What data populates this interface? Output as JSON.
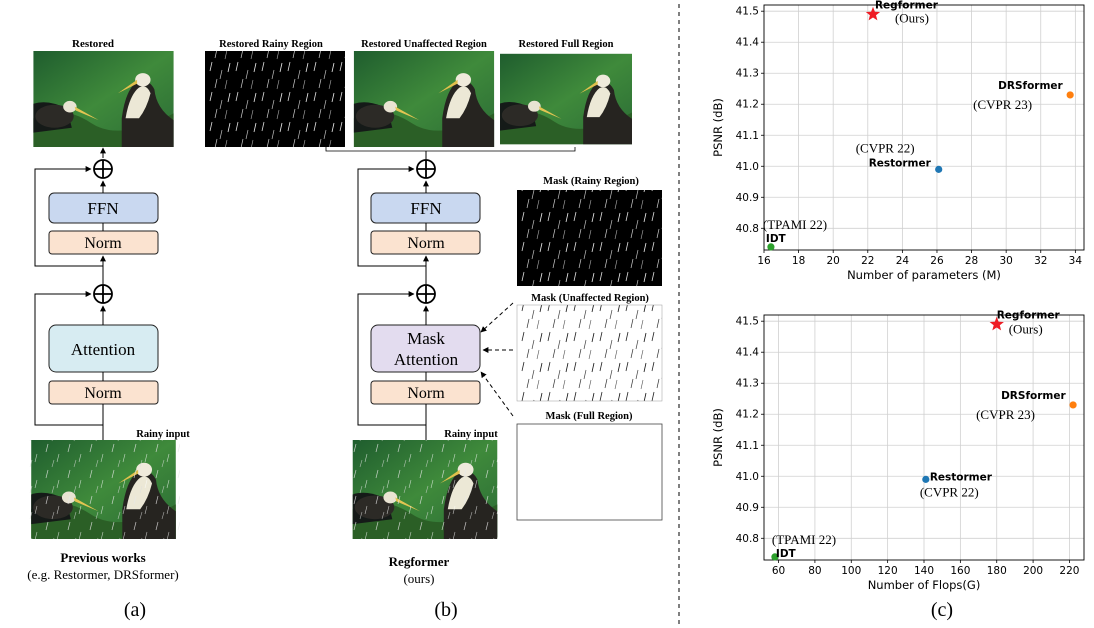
{
  "panel_a": {
    "restored_label": "Restored",
    "ffn_label": "FFN",
    "norm_label": "Norm",
    "attention_label": "Attention",
    "rainy_input_label": "Rainy input",
    "caption_title": "Previous works",
    "caption_sub": "(e.g. Restormer, DRSformer)",
    "panel_letter": "(a)"
  },
  "panel_b": {
    "restored_rainy_label": "Restored Rainy Region",
    "restored_unaffected_label": "Restored Unaffected Region",
    "restored_full_label": "Restored Full Region",
    "ffn_label": "FFN",
    "norm_label": "Norm",
    "mask_attention_line1": "Mask",
    "mask_attention_line2": "Attention",
    "rainy_input_label": "Rainy input",
    "mask_rainy_label": "Mask (Rainy Region)",
    "mask_unaffected_label": "Mask (Unaffected Region)",
    "mask_full_label": "Mask (Full Region)",
    "caption_title": "Regformer",
    "caption_sub": "(ours)",
    "panel_letter": "(b)"
  },
  "panel_c": {
    "panel_letter": "(c)"
  },
  "colors": {
    "ffn_fill": "#c9d8f0",
    "norm_fill": "#fbe3d0",
    "attention_fill": "#d7ecf2",
    "mask_attention_fill": "#e3dcef",
    "regformer": "#ee1c24",
    "drsformer": "#ff7f0e",
    "restormer": "#1f77b4",
    "idt": "#2ca02c"
  },
  "chart_data": [
    {
      "type": "scatter",
      "xlabel": "Number of parameters (M)",
      "ylabel": "PSNR (dB)",
      "xlim": [
        16,
        34.5
      ],
      "ylim": [
        40.73,
        41.52
      ],
      "xticks": [
        16,
        18,
        20,
        22,
        24,
        26,
        28,
        30,
        32,
        34
      ],
      "yticks": [
        40.8,
        40.9,
        41.0,
        41.1,
        41.2,
        41.3,
        41.4,
        41.5
      ],
      "grid": true,
      "points": [
        {
          "name": "Regformer",
          "venue": "(Ours)",
          "x": 22.3,
          "y": 41.49,
          "color": "#ee1c24",
          "marker": "star"
        },
        {
          "name": "DRSformer",
          "venue": "(CVPR 23)",
          "x": 33.7,
          "y": 41.23,
          "color": "#ff7f0e",
          "marker": "circle"
        },
        {
          "name": "Restormer",
          "venue": "(CVPR 22)",
          "x": 26.1,
          "y": 40.99,
          "color": "#1f77b4",
          "marker": "circle"
        },
        {
          "name": "IDT",
          "venue": "(TPAMI 22)",
          "x": 16.4,
          "y": 40.74,
          "color": "#2ca02c",
          "marker": "circle"
        }
      ]
    },
    {
      "type": "scatter",
      "xlabel": "Number of Flops(G)",
      "ylabel": "PSNR (dB)",
      "xlim": [
        52,
        228
      ],
      "ylim": [
        40.73,
        41.52
      ],
      "xticks": [
        60,
        80,
        100,
        120,
        140,
        160,
        180,
        200,
        220
      ],
      "yticks": [
        40.8,
        40.9,
        41.0,
        41.1,
        41.2,
        41.3,
        41.4,
        41.5
      ],
      "grid": true,
      "points": [
        {
          "name": "Regformer",
          "venue": "(Ours)",
          "x": 180,
          "y": 41.49,
          "color": "#ee1c24",
          "marker": "star"
        },
        {
          "name": "DRSformer",
          "venue": "(CVPR 23)",
          "x": 222,
          "y": 41.23,
          "color": "#ff7f0e",
          "marker": "circle"
        },
        {
          "name": "Restormer",
          "venue": "(CVPR 22)",
          "x": 141,
          "y": 40.99,
          "color": "#1f77b4",
          "marker": "circle"
        },
        {
          "name": "IDT",
          "venue": "(TPAMI 22)",
          "x": 58,
          "y": 40.74,
          "color": "#2ca02c",
          "marker": "circle"
        }
      ]
    }
  ]
}
